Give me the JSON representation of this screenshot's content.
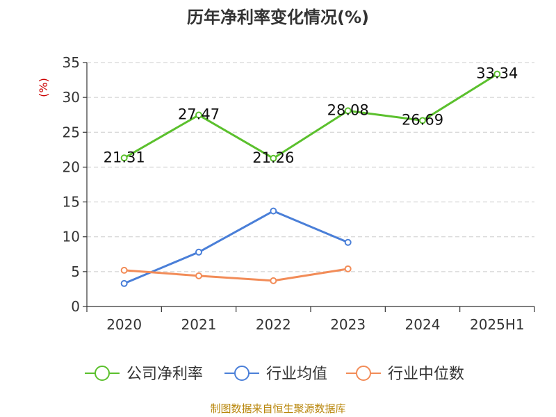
{
  "title": "历年净利率变化情况(%)",
  "source": "制图数据来自恒生聚源数据库",
  "chart_data": {
    "type": "line",
    "title": "历年净利率变化情况(%)",
    "ylabel": "(%)",
    "xlabel": "",
    "ylim": [
      0,
      35
    ],
    "yticks": [
      0,
      5,
      10,
      15,
      20,
      25,
      30,
      35
    ],
    "categories": [
      "2020",
      "2021",
      "2022",
      "2023",
      "2024",
      "2025H1"
    ],
    "grid": true,
    "legend_position": "bottom",
    "series": [
      {
        "name": "公司净利率",
        "color": "#5bc02d",
        "values": [
          21.31,
          27.47,
          21.26,
          28.08,
          26.69,
          33.34
        ],
        "labels": [
          "21.31",
          "27.47",
          "21.26",
          "28.08",
          "26.69",
          "33.34"
        ]
      },
      {
        "name": "行业均值",
        "color": "#4a7fd8",
        "values": [
          3.3,
          7.8,
          13.7,
          9.2,
          null,
          null
        ]
      },
      {
        "name": "行业中位数",
        "color": "#f28c58",
        "values": [
          5.2,
          4.4,
          3.7,
          5.4,
          null,
          null
        ]
      }
    ]
  }
}
